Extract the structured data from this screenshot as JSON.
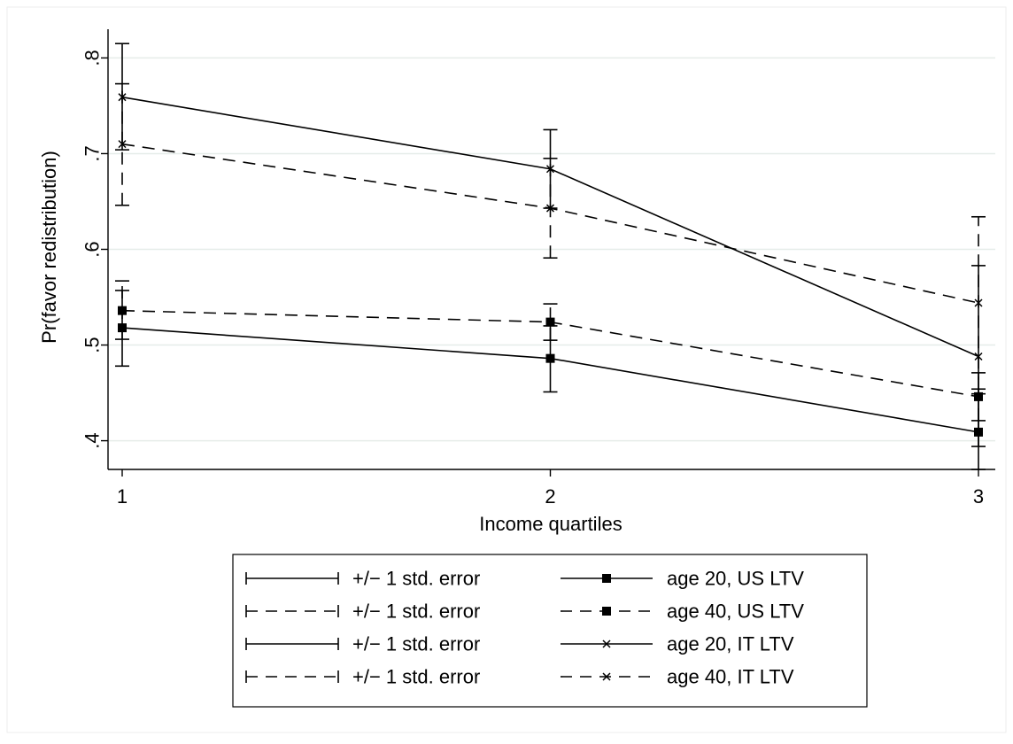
{
  "chart_data": {
    "type": "line",
    "title": "",
    "xlabel": "Income quartiles",
    "ylabel": "Pr(favor redistribution)",
    "xlim": [
      1,
      3
    ],
    "ylim": [
      0.37,
      0.83
    ],
    "x_ticks": [
      1,
      2,
      3
    ],
    "x_tick_labels": [
      "1",
      "2",
      "3"
    ],
    "y_ticks": [
      0.4,
      0.5,
      0.6,
      0.7,
      0.8
    ],
    "y_tick_labels": [
      ".4",
      ".5",
      ".6",
      ".7",
      ".8"
    ],
    "grid": true,
    "legend_position": "bottom",
    "series": [
      {
        "name": "age 20, US LTV",
        "marker": "square",
        "line_style": "solid",
        "x": [
          1,
          2,
          3
        ],
        "values": [
          0.518,
          0.486,
          0.409
        ],
        "se_low": [
          0.478,
          0.451,
          0.37
        ],
        "se_high": [
          0.557,
          0.52,
          0.449
        ],
        "errorbar_label": "+/− 1 std. error"
      },
      {
        "name": "age 40, US LTV",
        "marker": "square",
        "line_style": "dashed",
        "x": [
          1,
          2,
          3
        ],
        "values": [
          0.536,
          0.524,
          0.446
        ],
        "se_low": [
          0.506,
          0.505,
          0.421
        ],
        "se_high": [
          0.567,
          0.543,
          0.471
        ],
        "errorbar_label": "+/− 1 std. error"
      },
      {
        "name": "age 20, IT LTV",
        "marker": "x",
        "line_style": "solid",
        "x": [
          1,
          2,
          3
        ],
        "values": [
          0.759,
          0.684,
          0.488
        ],
        "se_low": [
          0.704,
          0.643,
          0.394
        ],
        "se_high": [
          0.815,
          0.725,
          0.583
        ],
        "errorbar_label": "+/− 1 std. error"
      },
      {
        "name": "age 40, IT LTV",
        "marker": "x",
        "line_style": "dashed",
        "x": [
          1,
          2,
          3
        ],
        "values": [
          0.71,
          0.643,
          0.544
        ],
        "se_low": [
          0.646,
          0.591,
          0.454
        ],
        "se_high": [
          0.773,
          0.695,
          0.634
        ],
        "errorbar_label": "+/− 1 std. error"
      }
    ],
    "legend_entries": [
      {
        "label": "+/− 1 std. error",
        "kind": "errorbar",
        "line_style": "solid",
        "marker": "none"
      },
      {
        "label": "age 20, US LTV",
        "kind": "series",
        "line_style": "solid",
        "marker": "square"
      },
      {
        "label": "+/− 1 std. error",
        "kind": "errorbar",
        "line_style": "dashed",
        "marker": "none"
      },
      {
        "label": "age 40, US LTV",
        "kind": "series",
        "line_style": "dashed",
        "marker": "square"
      },
      {
        "label": "+/− 1 std. error",
        "kind": "errorbar",
        "line_style": "solid",
        "marker": "none"
      },
      {
        "label": "age 20, IT LTV",
        "kind": "series",
        "line_style": "solid",
        "marker": "x"
      },
      {
        "label": "+/− 1 std. error",
        "kind": "errorbar",
        "line_style": "dashed",
        "marker": "none"
      },
      {
        "label": "age 40, IT LTV",
        "kind": "series",
        "line_style": "dashed",
        "marker": "x"
      }
    ],
    "colors": {
      "line": "#000000",
      "grid": "#e6ece9",
      "frame": "#f0f0f0",
      "background": "#ffffff"
    }
  }
}
